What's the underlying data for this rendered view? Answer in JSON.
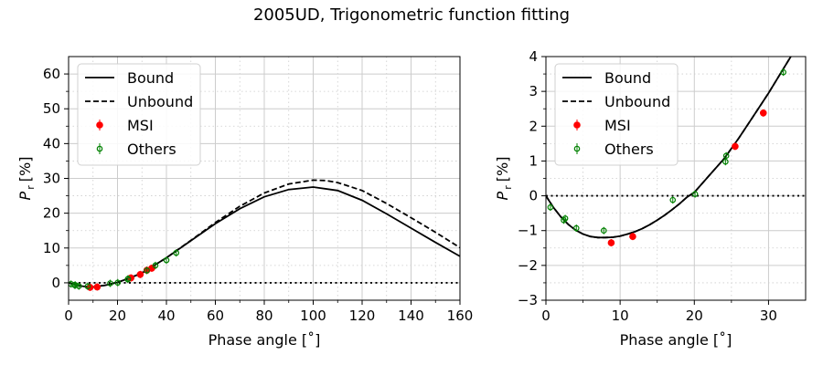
{
  "figure": {
    "title": "2005UD, Trigonometric function fitting"
  },
  "chart_data": [
    {
      "type": "scatter",
      "xlabel": "Phase angle [˚]",
      "ylabel": "P",
      "ylabel_sub": "r",
      "ylabel_unit": "[%]",
      "xlim": [
        0,
        160
      ],
      "ylim": [
        -5,
        65
      ],
      "xticks": [
        0,
        20,
        40,
        60,
        80,
        100,
        120,
        140,
        160
      ],
      "yticks": [
        0,
        10,
        20,
        30,
        40,
        50,
        60
      ],
      "xminor": [
        10,
        30,
        50,
        70,
        90,
        110,
        130,
        150
      ],
      "yminor": [
        5,
        15,
        25,
        35,
        45,
        55
      ],
      "grid": true,
      "legend": {
        "placement": "top-left",
        "entries": [
          "Bound",
          "Unbound",
          "MSI",
          "Others"
        ]
      },
      "series": [
        {
          "name": "Bound",
          "style": "solid line",
          "color": "#000000",
          "x": [
            0,
            4,
            8,
            10,
            15,
            20,
            25,
            30,
            40,
            50,
            60,
            70,
            80,
            90,
            100,
            110,
            120,
            130,
            140,
            150,
            160
          ],
          "y": [
            0,
            -0.8,
            -1.2,
            -1.2,
            -0.7,
            0.1,
            1.4,
            2.8,
            7.2,
            12.1,
            17.0,
            21.3,
            24.7,
            26.8,
            27.5,
            26.5,
            23.7,
            19.8,
            15.7,
            11.6,
            7.6
          ]
        },
        {
          "name": "Unbound",
          "style": "dashed line",
          "color": "#000000",
          "x": [
            0,
            4,
            8,
            10,
            15,
            20,
            25,
            30,
            40,
            50,
            60,
            70,
            80,
            90,
            100,
            105,
            110,
            120,
            130,
            140,
            150,
            160
          ],
          "y": [
            0,
            -0.8,
            -1.2,
            -1.2,
            -0.7,
            0.1,
            1.4,
            2.8,
            7.2,
            12.2,
            17.3,
            22.0,
            25.8,
            28.4,
            29.5,
            29.4,
            28.8,
            26.5,
            22.8,
            18.7,
            14.5,
            10.1
          ]
        },
        {
          "name": "MSI",
          "style": "filled circle",
          "color": "#ff0000",
          "x": [
            8.8,
            11.7,
            25.5,
            29.3,
            32,
            34
          ],
          "y": [
            -1.3,
            -1.2,
            1.4,
            2.4,
            3.6,
            4.2
          ]
        },
        {
          "name": "Others",
          "style": "open circle",
          "color": "#008000",
          "x": [
            1.0,
            2.5,
            2.8,
            4.2,
            7.8,
            17.0,
            20.1,
            24.2,
            24.3,
            32.0,
            35.5,
            40.0,
            44.0
          ],
          "y": [
            -0.35,
            -0.7,
            -0.65,
            -0.95,
            -1.0,
            -0.15,
            0.05,
            1.0,
            1.15,
            3.55,
            5.0,
            6.5,
            8.6
          ]
        }
      ]
    },
    {
      "type": "scatter",
      "xlabel": "Phase angle [˚]",
      "ylabel": "P",
      "ylabel_sub": "r",
      "ylabel_unit": "[%]",
      "xlim": [
        0,
        35
      ],
      "ylim": [
        -3,
        4
      ],
      "xticks": [
        0,
        10,
        20,
        30
      ],
      "yticks": [
        -3,
        -2,
        -1,
        0,
        1,
        2,
        3,
        4
      ],
      "xminor": [
        5,
        15,
        25
      ],
      "yminor": [
        -2.5,
        -1.5,
        -0.5,
        0.5,
        1.5,
        2.5,
        3.5
      ],
      "grid": true,
      "legend": {
        "placement": "top-left",
        "entries": [
          "Bound",
          "Unbound",
          "MSI",
          "Others"
        ]
      },
      "series": [
        {
          "name": "Bound",
          "style": "solid line",
          "color": "#000000",
          "x": [
            0,
            1,
            2,
            3,
            4,
            5,
            6,
            7,
            8,
            9,
            10,
            11,
            12,
            13,
            14,
            15,
            16,
            17,
            18,
            19,
            20,
            22,
            24,
            26,
            28,
            30,
            32,
            33
          ],
          "y": [
            0,
            -0.33,
            -0.6,
            -0.82,
            -0.99,
            -1.1,
            -1.17,
            -1.2,
            -1.2,
            -1.19,
            -1.16,
            -1.1,
            -1.03,
            -0.94,
            -0.83,
            -0.7,
            -0.56,
            -0.4,
            -0.23,
            -0.04,
            0.1,
            0.58,
            1.06,
            1.66,
            2.3,
            2.95,
            3.65,
            4.0
          ]
        },
        {
          "name": "Unbound",
          "style": "dashed line",
          "color": "#000000",
          "x": [
            0,
            1,
            2,
            3,
            4,
            5,
            6,
            7,
            8,
            9,
            10,
            11,
            12,
            13,
            14,
            15,
            16,
            17,
            18,
            19,
            20,
            22,
            24,
            26,
            28,
            30,
            32,
            33
          ],
          "y": [
            0,
            -0.33,
            -0.6,
            -0.82,
            -0.99,
            -1.1,
            -1.17,
            -1.2,
            -1.2,
            -1.19,
            -1.16,
            -1.1,
            -1.03,
            -0.94,
            -0.83,
            -0.7,
            -0.56,
            -0.4,
            -0.23,
            -0.04,
            0.1,
            0.58,
            1.06,
            1.66,
            2.3,
            2.95,
            3.65,
            4.0
          ]
        },
        {
          "name": "MSI",
          "style": "filled circle",
          "color": "#ff0000",
          "x": [
            8.8,
            11.7,
            25.5,
            29.3
          ],
          "y": [
            -1.35,
            -1.17,
            1.42,
            2.38
          ]
        },
        {
          "name": "Others",
          "style": "open circle",
          "color": "#008000",
          "x": [
            0.6,
            2.4,
            2.6,
            4.1,
            7.8,
            17.1,
            20.1,
            24.2,
            24.3,
            32.0
          ],
          "y": [
            -0.33,
            -0.7,
            -0.65,
            -0.93,
            -1.0,
            -0.12,
            0.05,
            0.98,
            1.15,
            3.55
          ]
        }
      ]
    }
  ]
}
